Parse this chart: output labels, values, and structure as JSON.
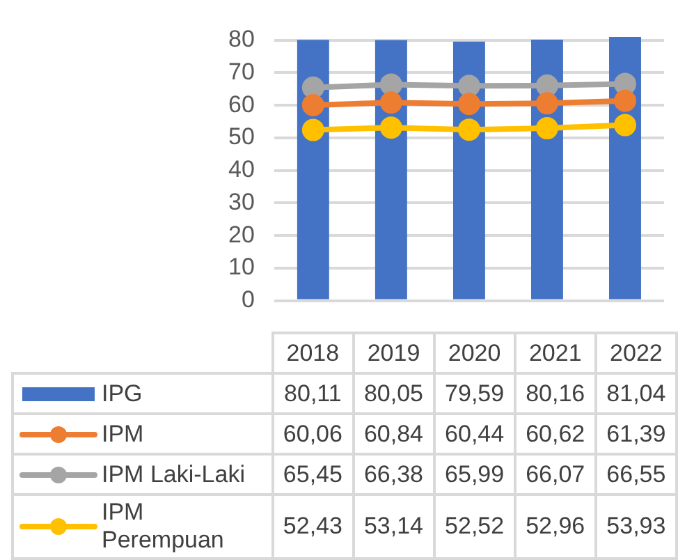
{
  "chart_data": {
    "type": "bar",
    "categories": [
      "2018",
      "2019",
      "2020",
      "2021",
      "2022"
    ],
    "series": [
      {
        "name": "IPG",
        "color": "#4472c4",
        "values": [
          80.11,
          80.05,
          79.59,
          80.16,
          81.04
        ],
        "value_labels": [
          "80,11",
          "80,05",
          "79,59",
          "80,16",
          "81,04"
        ]
      },
      {
        "name": "IPM",
        "type": "line",
        "color": "#ed7d31",
        "values": [
          60.06,
          60.84,
          60.44,
          60.62,
          61.39
        ],
        "value_labels": [
          "60,06",
          "60,84",
          "60,44",
          "60,62",
          "61,39"
        ]
      },
      {
        "name": "IPM Laki-Laki",
        "type": "line",
        "color": "#a5a5a5",
        "values": [
          65.45,
          66.38,
          65.99,
          66.07,
          66.55
        ],
        "value_labels": [
          "65,45",
          "66,38",
          "65,99",
          "66,07",
          "66,55"
        ]
      },
      {
        "name": "IPM Perempuan",
        "type": "line",
        "color": "#ffc000",
        "values": [
          52.43,
          53.14,
          52.52,
          52.96,
          53.93
        ],
        "value_labels": [
          "52,43",
          "53,14",
          "52,52",
          "52,96",
          "53,93"
        ]
      }
    ],
    "ylim": [
      0,
      82
    ],
    "yticks": [
      0,
      10,
      20,
      30,
      40,
      50,
      60,
      70,
      80
    ],
    "grid": "y",
    "legend": "bottom",
    "marker": "circle",
    "line_style": "solid"
  }
}
